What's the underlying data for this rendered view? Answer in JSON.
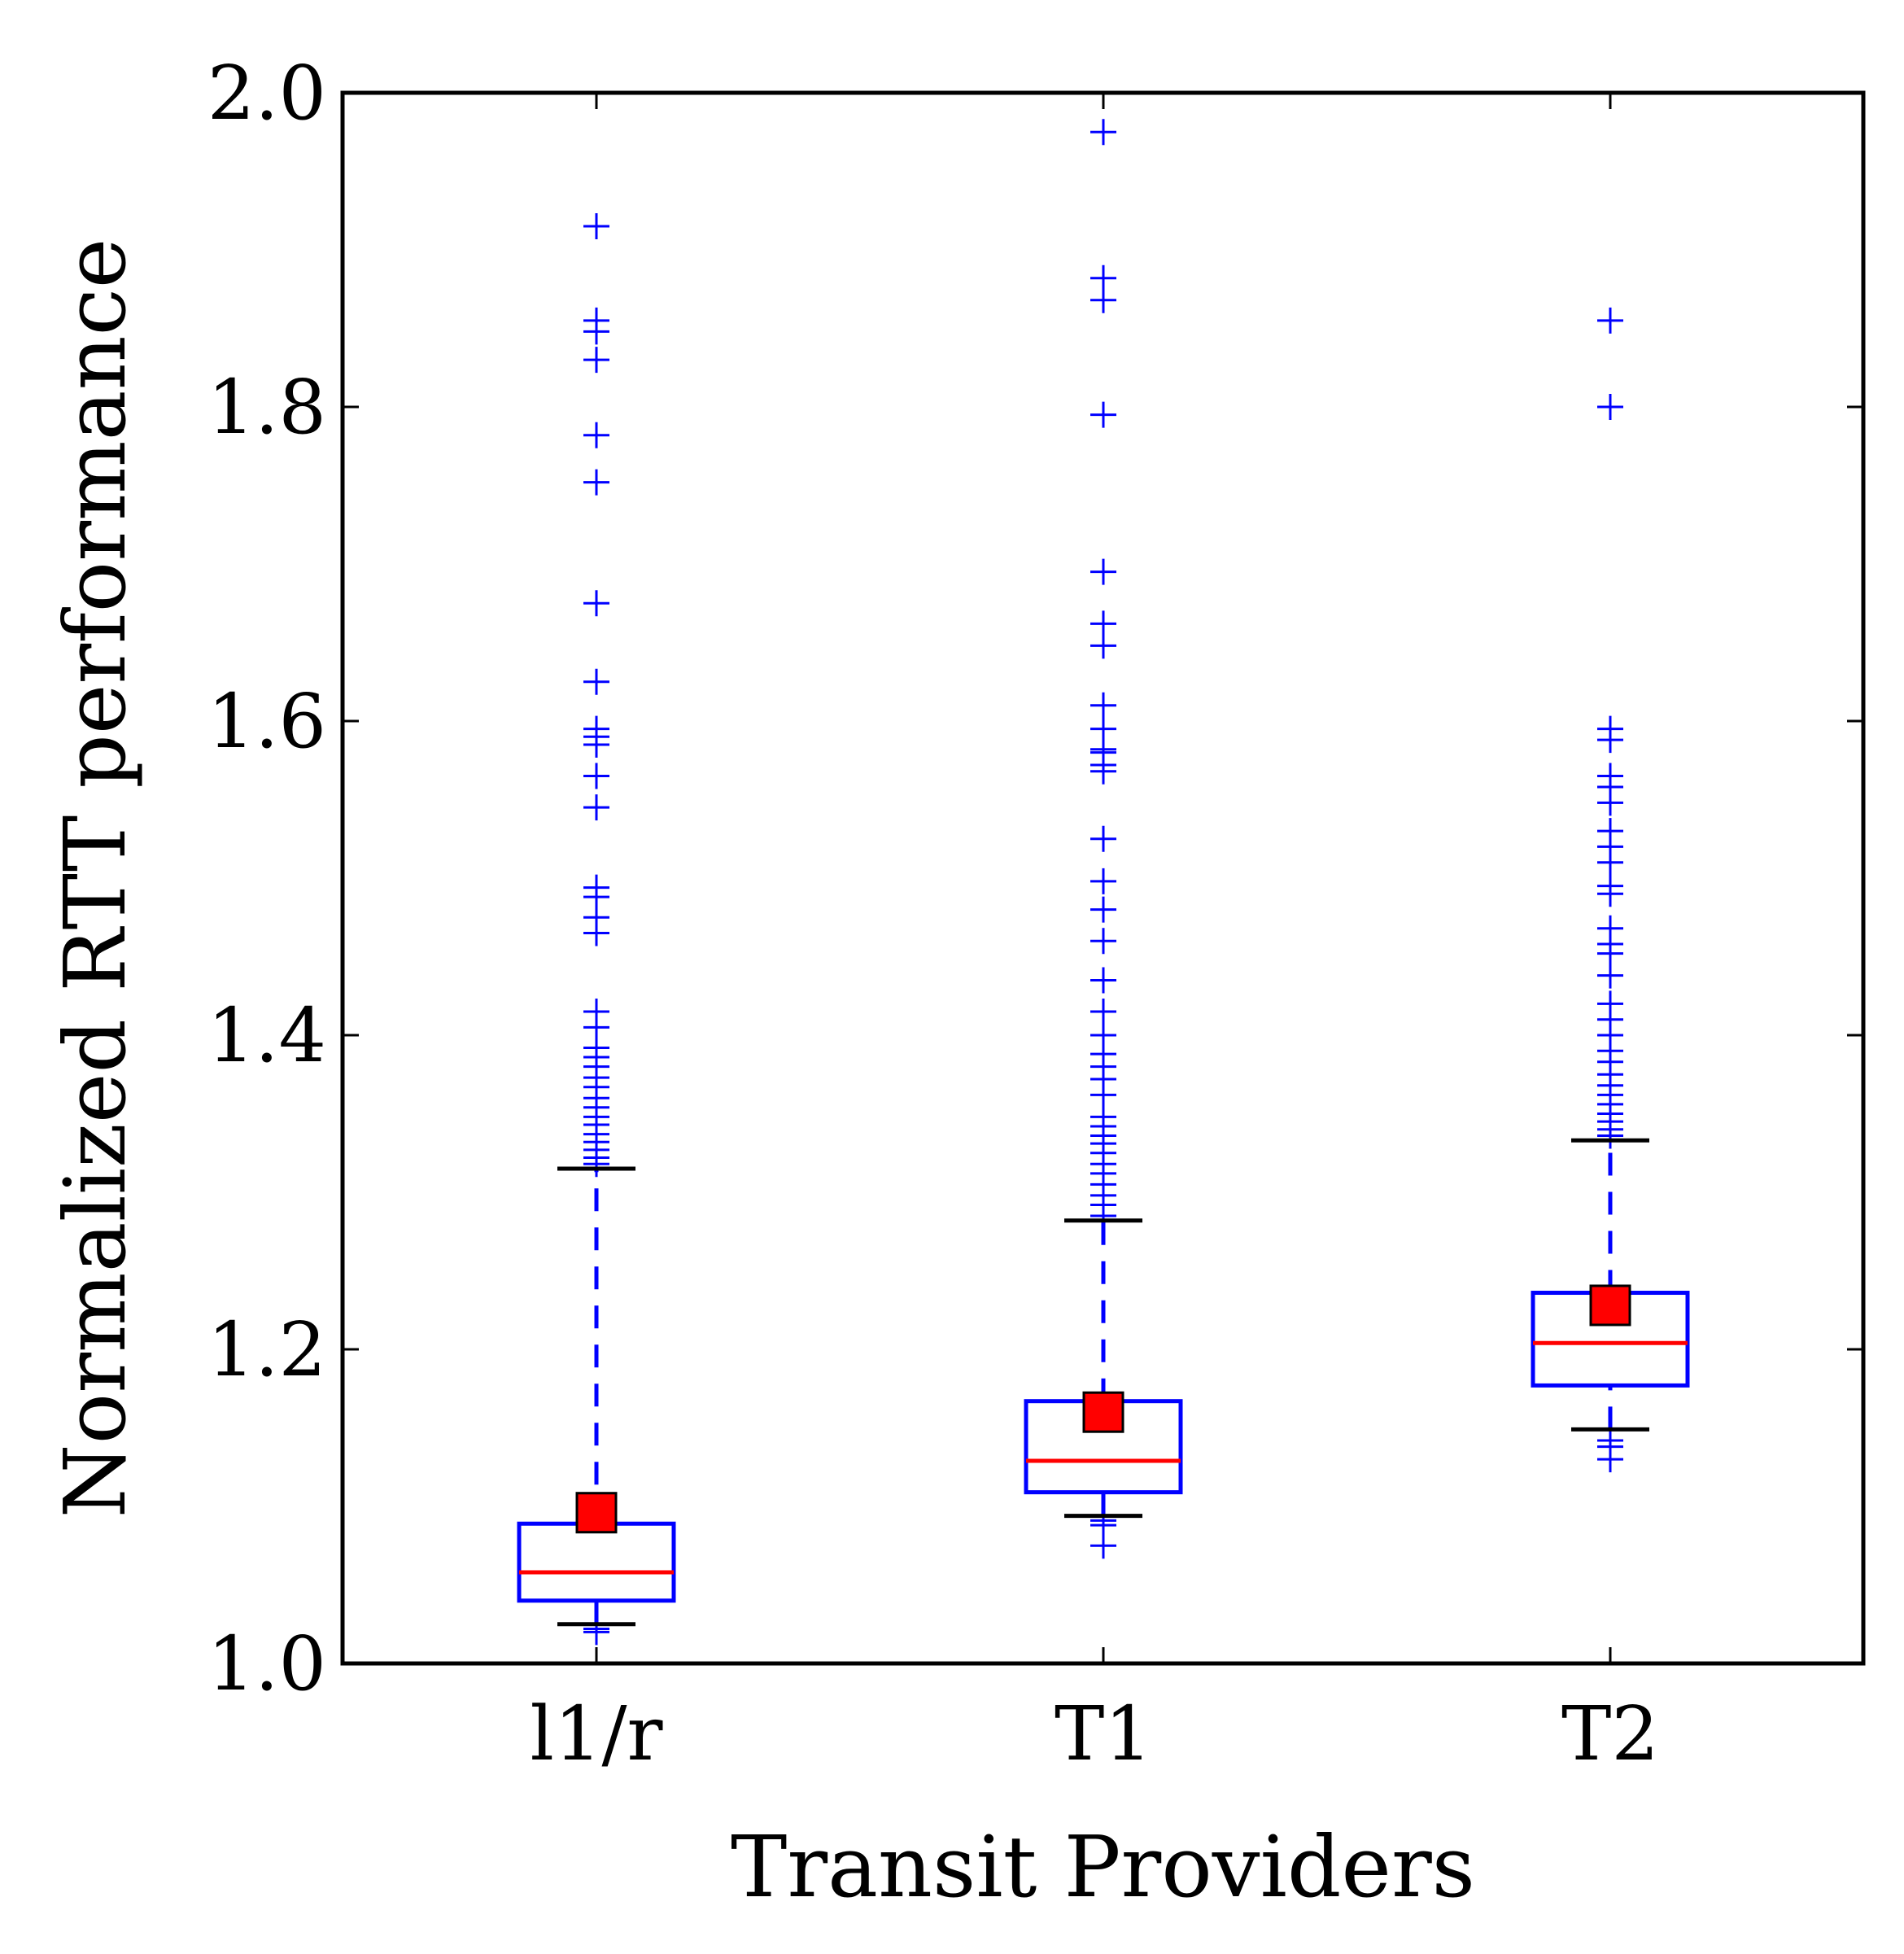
{
  "chart_data": {
    "type": "box",
    "xlabel": "Transit Providers",
    "ylabel": "Normalized RTT performance",
    "ylim": [
      1.0,
      2.0
    ],
    "yticks": [
      "1.0",
      "1.2",
      "1.4",
      "1.6",
      "1.8",
      "2.0"
    ],
    "categories": [
      "l1/r",
      "T1",
      "T2"
    ],
    "grid": false,
    "colors": {
      "box": "#0000ff",
      "median": "#ff0000",
      "mean_marker": "#ff0000",
      "cap": "#000000",
      "outlier": "#0000ff"
    },
    "boxes": [
      {
        "category": "l1/r",
        "whisker_low": 1.025,
        "q1": 1.04,
        "median": 1.058,
        "q3": 1.089,
        "whisker_high": 1.315,
        "mean": 1.096,
        "outliers": [
          1.02,
          1.022,
          1.318,
          1.322,
          1.327,
          1.332,
          1.337,
          1.343,
          1.348,
          1.354,
          1.36,
          1.367,
          1.373,
          1.38,
          1.386,
          1.392,
          1.405,
          1.415,
          1.465,
          1.475,
          1.488,
          1.494,
          1.545,
          1.565,
          1.585,
          1.59,
          1.595,
          1.625,
          1.675,
          1.752,
          1.782,
          1.83,
          1.848,
          1.855,
          1.915
        ]
      },
      {
        "category": "T1",
        "whisker_low": 1.094,
        "q1": 1.109,
        "median": 1.129,
        "q3": 1.167,
        "whisker_high": 1.282,
        "mean": 1.16,
        "outliers": [
          1.075,
          1.088,
          1.091,
          1.285,
          1.292,
          1.298,
          1.305,
          1.312,
          1.318,
          1.325,
          1.331,
          1.336,
          1.342,
          1.348,
          1.362,
          1.372,
          1.38,
          1.388,
          1.4,
          1.415,
          1.435,
          1.46,
          1.48,
          1.498,
          1.525,
          1.568,
          1.572,
          1.58,
          1.582,
          1.595,
          1.61,
          1.648,
          1.662,
          1.695,
          1.795,
          1.868,
          1.882,
          1.975
        ]
      },
      {
        "category": "T2",
        "whisker_low": 1.149,
        "q1": 1.177,
        "median": 1.204,
        "q3": 1.236,
        "whisker_high": 1.333,
        "mean": 1.228,
        "outliers": [
          1.13,
          1.138,
          1.142,
          1.336,
          1.34,
          1.345,
          1.35,
          1.356,
          1.362,
          1.368,
          1.375,
          1.383,
          1.39,
          1.4,
          1.41,
          1.42,
          1.438,
          1.452,
          1.458,
          1.468,
          1.49,
          1.495,
          1.51,
          1.52,
          1.53,
          1.548,
          1.558,
          1.565,
          1.588,
          1.595,
          1.8,
          1.855
        ]
      }
    ]
  }
}
